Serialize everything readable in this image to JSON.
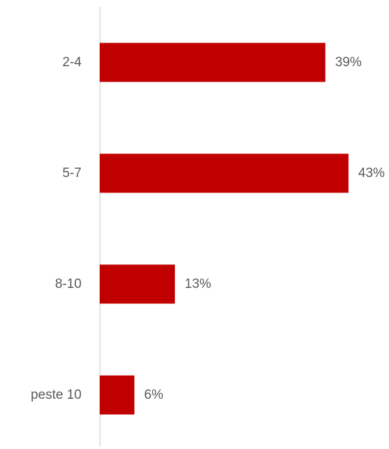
{
  "chart_data": {
    "type": "bar",
    "orientation": "horizontal",
    "categories": [
      "2-4",
      "5-7",
      "8-10",
      "peste 10"
    ],
    "values": [
      39,
      43,
      13,
      6
    ],
    "value_labels": [
      "39%",
      "43%",
      "13%",
      "6%"
    ],
    "unit": "%",
    "title": "",
    "xlabel": "",
    "ylabel": "",
    "xlim": [
      0,
      43
    ],
    "grid": false,
    "legend": "none",
    "bar_color": "#c00000",
    "axis_color": "#d9d9d9",
    "label_color": "#595959"
  }
}
